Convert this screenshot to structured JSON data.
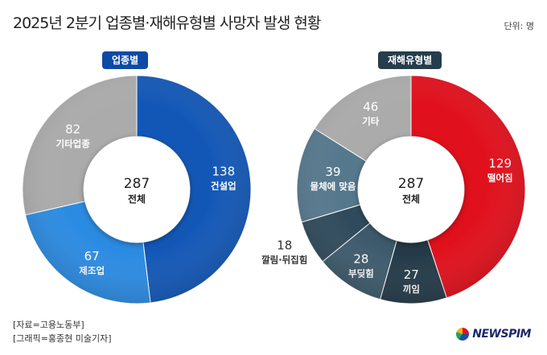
{
  "header": {
    "title": "2025년 2분기 업종별·재해유형별 사망자 발생 현황",
    "unit": "단위: 명"
  },
  "chart_data": [
    {
      "type": "pie",
      "title": "업종별",
      "center": {
        "value": "287",
        "label": "전체"
      },
      "slices": [
        {
          "label": "건설업",
          "value": 138,
          "color": "#1357b6"
        },
        {
          "label": "제조업",
          "value": 67,
          "color": "#2b8be2"
        },
        {
          "label": "기타업종",
          "value": 82,
          "color": "#ababab"
        }
      ]
    },
    {
      "type": "pie",
      "title": "재해유형별",
      "center": {
        "value": "287",
        "label": "전체"
      },
      "slices": [
        {
          "label": "떨어짐",
          "value": 129,
          "color": "#e0101c"
        },
        {
          "label": "끼임",
          "value": 27,
          "color": "#243a48"
        },
        {
          "label": "부딪힘",
          "value": 28,
          "color": "#3d5a6c"
        },
        {
          "label": "깔림·뒤집힘",
          "value": 18,
          "color": "#2f4a5c"
        },
        {
          "label": "물체에 맞음",
          "value": 39,
          "color": "#56788d"
        },
        {
          "label": "기타",
          "value": 46,
          "color": "#ababab"
        }
      ]
    }
  ],
  "footer": {
    "source1": "[자료=고용노동부]",
    "source2": "[그래픽=홍종현 미술기자]",
    "logo": "NEWSPIM"
  }
}
